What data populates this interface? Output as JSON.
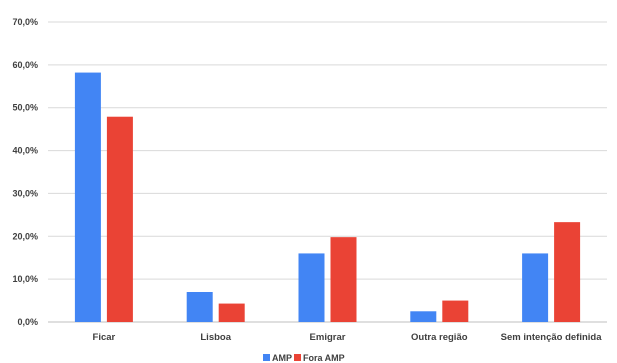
{
  "chart_data": {
    "type": "bar",
    "categories": [
      "Ficar",
      "Lisboa",
      "Emigrar",
      "Outra região",
      "Sem intenção definida"
    ],
    "series": [
      {
        "name": "AMP",
        "values": [
          58.2,
          7.0,
          16.0,
          2.5,
          16.0
        ],
        "color": "#4285f4"
      },
      {
        "name": "Fora AMP",
        "values": [
          47.9,
          4.3,
          19.8,
          5.0,
          23.3
        ],
        "color": "#ea4335"
      }
    ],
    "ylim": [
      0,
      70
    ],
    "yticks": [
      "0,0%",
      "10,0%",
      "20,0%",
      "30,0%",
      "40,0%",
      "50,0%",
      "60,0%",
      "70,0%"
    ],
    "grid": true,
    "legend_position": "bottom"
  }
}
